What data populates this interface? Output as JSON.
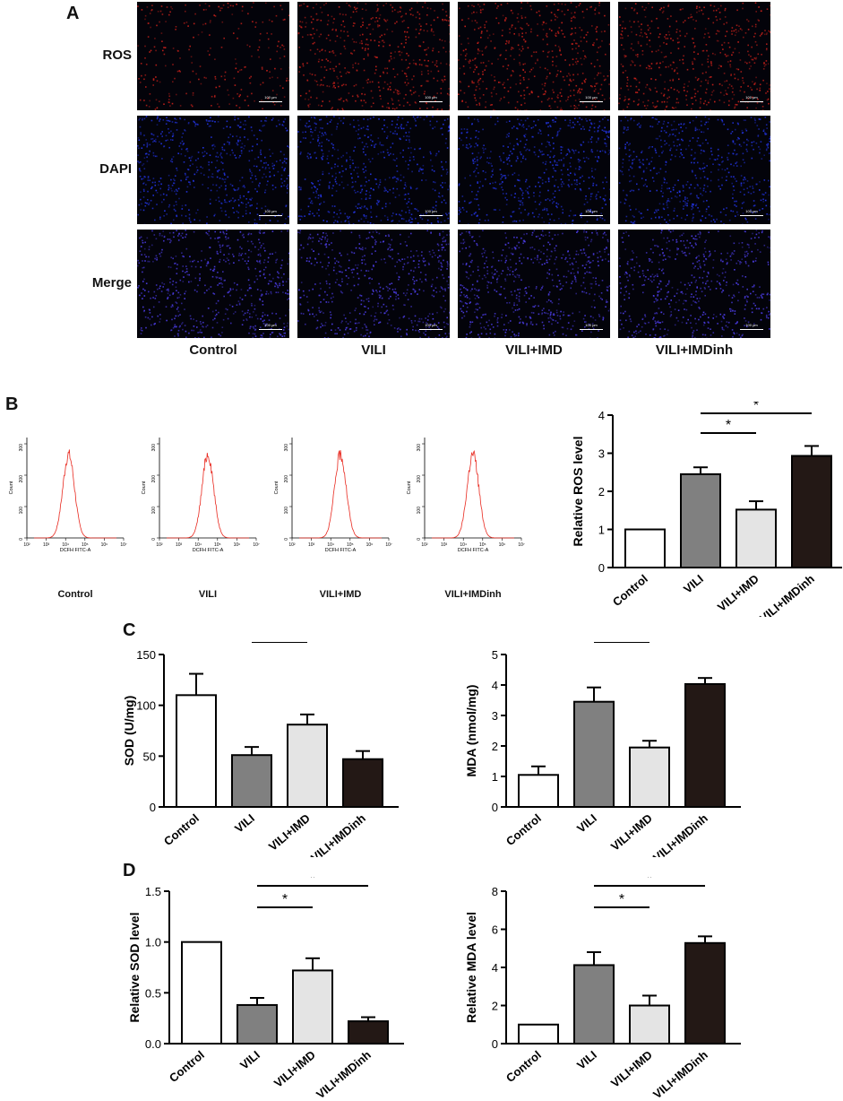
{
  "panels": {
    "A": "A",
    "B": "B",
    "C": "C",
    "D": "D"
  },
  "panelA": {
    "rows": [
      "ROS",
      "DAPI",
      "Merge"
    ],
    "cols": [
      "Control",
      "VILI",
      "VILI+IMD",
      "VILI+IMDinh"
    ],
    "scale": "100 μm",
    "colors": {
      "ROS": "#c0201a",
      "DAPI": "#2233dd",
      "Merge": "#4a3be0"
    }
  },
  "flow": {
    "groups": [
      "Control",
      "VILI",
      "VILI+IMD",
      "VILI+IMDinh"
    ],
    "xlabel": "DCFH FITC-A",
    "ylabel": "Count",
    "yticks": [
      "0",
      "100",
      "200",
      "300"
    ],
    "xticks": [
      "10²",
      "10³",
      "10⁴",
      "10⁵",
      "10⁶",
      "10⁷"
    ],
    "line_color": "#e8281e"
  },
  "chart_data": [
    {
      "id": "B",
      "type": "bar",
      "categories": [
        "Control",
        "VILI",
        "VILI+IMD",
        "VILI+IMDinh"
      ],
      "values": [
        1.0,
        2.45,
        1.52,
        2.93
      ],
      "errors": [
        0,
        0.18,
        0.22,
        0.26
      ],
      "ylabel": "Relative ROS level",
      "ylim": [
        0,
        4
      ],
      "yticks": [
        0,
        1,
        2,
        3,
        4
      ],
      "sig": [
        {
          "from": 1,
          "to": 2,
          "label": "*"
        },
        {
          "from": 1,
          "to": 3,
          "label": "*"
        }
      ]
    },
    {
      "id": "C1",
      "type": "bar",
      "categories": [
        "Control",
        "VILI",
        "VILI+IMD",
        "VILI+IMDinh"
      ],
      "values": [
        110,
        51,
        81,
        47
      ],
      "errors": [
        21,
        8,
        10,
        8
      ],
      "ylabel": "SOD (U/mg)",
      "ylim": [
        0,
        150
      ],
      "yticks": [
        0,
        50,
        100,
        150
      ],
      "sig": [
        {
          "from": 1,
          "to": 2,
          "label": "*"
        }
      ]
    },
    {
      "id": "C2",
      "type": "bar",
      "categories": [
        "Control",
        "VILI",
        "VILI+IMD",
        "VILI+IMDinh"
      ],
      "values": [
        1.05,
        3.45,
        1.95,
        4.03
      ],
      "errors": [
        0.28,
        0.47,
        0.22,
        0.2
      ],
      "ylabel": "MDA (nmol/mg)",
      "ylim": [
        0,
        5
      ],
      "yticks": [
        0,
        1,
        2,
        3,
        4,
        5
      ],
      "sig": [
        {
          "from": 1,
          "to": 2,
          "label": "*"
        }
      ]
    },
    {
      "id": "D1",
      "type": "bar",
      "categories": [
        "Control",
        "VILI",
        "VILI+IMD",
        "VILI+IMDinh"
      ],
      "values": [
        1.0,
        0.38,
        0.72,
        0.22
      ],
      "errors": [
        0,
        0.07,
        0.12,
        0.04
      ],
      "ylabel": "Relative SOD level",
      "ylim": [
        0,
        1.5
      ],
      "yticks": [
        "0.0",
        "0.5",
        "1.0",
        "1.5"
      ],
      "sig": [
        {
          "from": 1,
          "to": 2,
          "label": "*"
        },
        {
          "from": 1,
          "to": 3,
          "label": "*"
        }
      ]
    },
    {
      "id": "D2",
      "type": "bar",
      "categories": [
        "Control",
        "VILI",
        "VILI+IMD",
        "VILI+IMDinh"
      ],
      "values": [
        1.0,
        4.12,
        2.0,
        5.28
      ],
      "errors": [
        0,
        0.68,
        0.52,
        0.35
      ],
      "ylabel": "Relative MDA level",
      "ylim": [
        0,
        8
      ],
      "yticks": [
        0,
        2,
        4,
        6,
        8
      ],
      "sig": [
        {
          "from": 1,
          "to": 2,
          "label": "*"
        },
        {
          "from": 1,
          "to": 3,
          "label": "*"
        }
      ]
    }
  ],
  "bar_colors": [
    "#ffffff",
    "#808080",
    "#e4e4e4",
    "#231815"
  ]
}
